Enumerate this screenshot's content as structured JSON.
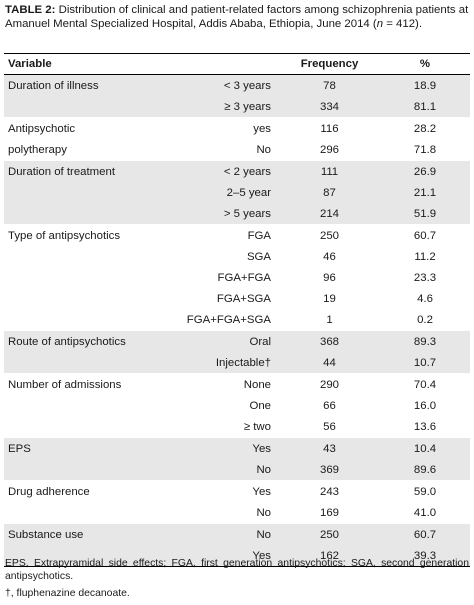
{
  "caption": {
    "label": "TABLE 2:",
    "text_before_n": " Distribution of clinical and patient-related factors among schizophrenia patients at Amanuel Mental Specialized Hospital, Addis Ababa, Ethiopia, June 2014 (",
    "n_symbol": "n",
    "text_after_n": " = 412)."
  },
  "table": {
    "headers": [
      "Variable",
      "",
      "Frequency",
      "%"
    ],
    "groups": [
      {
        "variable": [
          "Duration of illness"
        ],
        "shaded": true,
        "rows": [
          {
            "category": "< 3 years",
            "frequency": "78",
            "percent": "18.9"
          },
          {
            "category": "≥ 3 years",
            "frequency": "334",
            "percent": "81.1"
          }
        ]
      },
      {
        "variable": [
          "Antipsychotic",
          "polytherapy"
        ],
        "shaded": false,
        "rows": [
          {
            "category": "yes",
            "frequency": "116",
            "percent": "28.2"
          },
          {
            "category": "No",
            "frequency": "296",
            "percent": "71.8"
          }
        ]
      },
      {
        "variable": [
          "Duration of treatment"
        ],
        "shaded": true,
        "rows": [
          {
            "category": "< 2 years",
            "frequency": "111",
            "percent": "26.9"
          },
          {
            "category": "2–5 year",
            "frequency": "87",
            "percent": "21.1"
          },
          {
            "category": "> 5 years",
            "frequency": "214",
            "percent": "51.9"
          }
        ]
      },
      {
        "variable": [
          "Type of antipsychotics"
        ],
        "shaded": false,
        "rows": [
          {
            "category": "FGA",
            "frequency": "250",
            "percent": "60.7"
          },
          {
            "category": "SGA",
            "frequency": "46",
            "percent": "11.2"
          },
          {
            "category": "FGA+FGA",
            "frequency": "96",
            "percent": "23.3"
          },
          {
            "category": "FGA+SGA",
            "frequency": "19",
            "percent": "4.6"
          },
          {
            "category": "FGA+FGA+SGA",
            "frequency": "1",
            "percent": "0.2"
          }
        ]
      },
      {
        "variable": [
          "Route of antipsychotics"
        ],
        "shaded": true,
        "rows": [
          {
            "category": "Oral",
            "frequency": "368",
            "percent": "89.3"
          },
          {
            "category": "Injectable†",
            "frequency": "44",
            "percent": "10.7"
          }
        ]
      },
      {
        "variable": [
          "Number of admissions"
        ],
        "shaded": false,
        "rows": [
          {
            "category": "None",
            "frequency": "290",
            "percent": "70.4"
          },
          {
            "category": "One",
            "frequency": "66",
            "percent": "16.0"
          },
          {
            "category": "≥ two",
            "frequency": "56",
            "percent": "13.6"
          }
        ]
      },
      {
        "variable": [
          "EPS"
        ],
        "shaded": true,
        "rows": [
          {
            "category": "Yes",
            "frequency": "43",
            "percent": "10.4"
          },
          {
            "category": "No",
            "frequency": "369",
            "percent": "89.6"
          }
        ]
      },
      {
        "variable": [
          "Drug adherence"
        ],
        "shaded": false,
        "rows": [
          {
            "category": "Yes",
            "frequency": "243",
            "percent": "59.0"
          },
          {
            "category": "No",
            "frequency": "169",
            "percent": "41.0"
          }
        ]
      },
      {
        "variable": [
          "Substance use"
        ],
        "shaded": true,
        "rows": [
          {
            "category": "No",
            "frequency": "250",
            "percent": "60.7"
          },
          {
            "category": "Yes",
            "frequency": "162",
            "percent": "39.3"
          }
        ]
      }
    ]
  },
  "footnotes": {
    "abbreviations": "EPS, Extrapyramidal side effects; FGA, first generation antipsychotics; SGA, second generation antipsychotics.",
    "dagger": "†, fluphenazine decanoate."
  },
  "colors": {
    "shaded_row": "#e7e7e7",
    "rule": "#000000"
  }
}
